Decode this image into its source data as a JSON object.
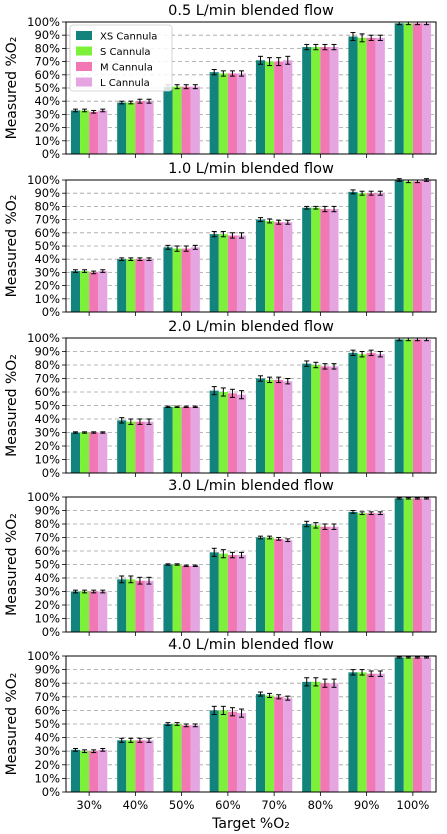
{
  "chart_data": [
    {
      "type": "bar",
      "title": "0.5 L/min blended flow",
      "ylabel": "Measured %O₂",
      "xlabel": "",
      "ylim": [
        0,
        100
      ],
      "grid": "horizontal dashed",
      "legend_position": "top-left",
      "categories": [
        "30%",
        "40%",
        "50%",
        "60%",
        "70%",
        "80%",
        "90%",
        "100%"
      ],
      "series": [
        {
          "name": "XS Cannula",
          "color": "#13847c",
          "values": [
            33,
            39,
            51,
            62,
            71,
            81,
            89,
            99
          ],
          "errors": [
            1,
            1,
            1.5,
            2,
            3,
            2,
            3,
            1
          ]
        },
        {
          "name": "S Cannula",
          "color": "#7ff03a",
          "values": [
            33,
            39,
            51,
            61,
            70,
            81,
            88,
            99
          ],
          "errors": [
            1,
            1,
            1.5,
            2,
            3,
            2,
            3,
            1
          ]
        },
        {
          "name": "M Cannula",
          "color": "#f277b5",
          "values": [
            32,
            40,
            51,
            61,
            70,
            81,
            88,
            99
          ],
          "errors": [
            1,
            1.5,
            1.5,
            2,
            3,
            2,
            2,
            1
          ]
        },
        {
          "name": "L Cannula",
          "color": "#e4a5e1",
          "values": [
            33,
            40,
            51,
            61,
            71,
            81,
            88,
            99
          ],
          "errors": [
            1,
            1.5,
            1.5,
            2,
            3,
            2,
            2,
            1
          ]
        }
      ]
    },
    {
      "type": "bar",
      "title": "1.0 L/min blended flow",
      "ylabel": "Measured %O₂",
      "xlabel": "",
      "ylim": [
        0,
        100
      ],
      "grid": "horizontal dashed",
      "categories": [
        "30%",
        "40%",
        "50%",
        "60%",
        "70%",
        "80%",
        "90%",
        "100%"
      ],
      "series": [
        {
          "name": "XS Cannula",
          "color": "#13847c",
          "values": [
            31,
            40,
            49,
            59,
            70,
            79,
            91,
            100
          ],
          "errors": [
            1,
            1,
            1.5,
            2,
            1.5,
            1,
            1.5,
            1
          ]
        },
        {
          "name": "S Cannula",
          "color": "#7ff03a",
          "values": [
            31,
            40,
            48,
            59,
            69,
            79,
            90,
            99
          ],
          "errors": [
            1,
            1,
            2,
            2,
            1.5,
            1,
            1.5,
            1
          ]
        },
        {
          "name": "M Cannula",
          "color": "#f277b5",
          "values": [
            30,
            40,
            48,
            58,
            68,
            78,
            90,
            99
          ],
          "errors": [
            1,
            1,
            2,
            2,
            1.5,
            2,
            1.5,
            1
          ]
        },
        {
          "name": "L Cannula",
          "color": "#e4a5e1",
          "values": [
            31,
            40,
            49,
            58,
            68,
            78,
            90,
            100
          ],
          "errors": [
            1,
            1,
            1.5,
            2,
            1.5,
            2,
            1.5,
            1
          ]
        }
      ]
    },
    {
      "type": "bar",
      "title": "2.0 L/min blended flow",
      "ylabel": "Measured %O₂",
      "xlabel": "",
      "ylim": [
        0,
        100
      ],
      "grid": "horizontal dashed",
      "categories": [
        "30%",
        "40%",
        "50%",
        "60%",
        "70%",
        "80%",
        "90%",
        "100%"
      ],
      "series": [
        {
          "name": "XS Cannula",
          "color": "#13847c",
          "values": [
            30,
            39,
            49,
            61,
            70,
            81,
            89,
            99
          ],
          "errors": [
            0.5,
            2,
            0.5,
            3,
            2,
            2,
            2,
            1
          ]
        },
        {
          "name": "S Cannula",
          "color": "#7ff03a",
          "values": [
            30,
            38,
            49,
            60,
            69,
            80,
            88,
            99
          ],
          "errors": [
            0.5,
            2,
            0.5,
            3,
            2,
            2,
            2,
            1
          ]
        },
        {
          "name": "M Cannula",
          "color": "#f277b5",
          "values": [
            30,
            38,
            49,
            59,
            69,
            79,
            89,
            99
          ],
          "errors": [
            0.5,
            2,
            0.5,
            3,
            2,
            2,
            2,
            1
          ]
        },
        {
          "name": "L Cannula",
          "color": "#e4a5e1",
          "values": [
            30,
            38,
            49,
            58,
            68,
            79,
            88,
            99
          ],
          "errors": [
            0.5,
            2,
            0.5,
            3,
            2,
            2,
            2,
            1
          ]
        }
      ]
    },
    {
      "type": "bar",
      "title": "3.0 L/min blended flow",
      "ylabel": "Measured %O₂",
      "xlabel": "",
      "ylim": [
        0,
        100
      ],
      "grid": "horizontal dashed",
      "categories": [
        "30%",
        "40%",
        "50%",
        "60%",
        "70%",
        "80%",
        "90%",
        "100%"
      ],
      "series": [
        {
          "name": "XS Cannula",
          "color": "#13847c",
          "values": [
            30,
            39,
            50,
            59,
            70,
            80,
            89,
            99
          ],
          "errors": [
            1,
            2.5,
            0.5,
            3,
            1,
            2,
            1,
            0.5
          ]
        },
        {
          "name": "S Cannula",
          "color": "#7ff03a",
          "values": [
            30,
            39,
            50,
            58,
            70,
            79,
            88,
            99
          ],
          "errors": [
            1,
            2.5,
            0.5,
            3,
            1,
            2,
            1,
            0.5
          ]
        },
        {
          "name": "M Cannula",
          "color": "#f277b5",
          "values": [
            30,
            38,
            49,
            57,
            69,
            78,
            88,
            99
          ],
          "errors": [
            1,
            2.5,
            0.5,
            2,
            1,
            2,
            1,
            0.5
          ]
        },
        {
          "name": "L Cannula",
          "color": "#e4a5e1",
          "values": [
            30,
            38,
            49,
            57,
            68,
            78,
            88,
            99
          ],
          "errors": [
            1,
            2.5,
            0.5,
            2,
            1,
            2,
            1,
            0.5
          ]
        }
      ]
    },
    {
      "type": "bar",
      "title": "4.0 L/min blended flow",
      "ylabel": "Measured %O₂",
      "xlabel": "Target %O₂",
      "ylim": [
        0,
        100
      ],
      "grid": "horizontal dashed",
      "categories": [
        "30%",
        "40%",
        "50%",
        "60%",
        "70%",
        "80%",
        "90%",
        "100%"
      ],
      "series": [
        {
          "name": "XS Cannula",
          "color": "#13847c",
          "values": [
            31,
            38,
            50,
            60,
            72,
            81,
            88,
            99
          ],
          "errors": [
            1,
            1.5,
            1,
            3,
            1.5,
            3,
            2,
            0.5
          ]
        },
        {
          "name": "S Cannula",
          "color": "#7ff03a",
          "values": [
            30,
            38,
            50,
            60,
            71,
            81,
            88,
            99
          ],
          "errors": [
            1,
            1.5,
            1,
            3,
            1.5,
            3,
            2,
            0.5
          ]
        },
        {
          "name": "M Cannula",
          "color": "#f277b5",
          "values": [
            30,
            38,
            49,
            59,
            70,
            80,
            87,
            99
          ],
          "errors": [
            1,
            1.5,
            1,
            3,
            1.5,
            3,
            2,
            0.5
          ]
        },
        {
          "name": "L Cannula",
          "color": "#e4a5e1",
          "values": [
            31,
            38,
            49,
            58,
            69,
            80,
            87,
            99
          ],
          "errors": [
            1,
            1.5,
            1,
            3,
            1.5,
            3,
            2,
            0.5
          ]
        }
      ]
    }
  ],
  "yticks": [
    "0%",
    "10%",
    "20%",
    "30%",
    "40%",
    "50%",
    "60%",
    "70%",
    "80%",
    "90%",
    "100%"
  ]
}
